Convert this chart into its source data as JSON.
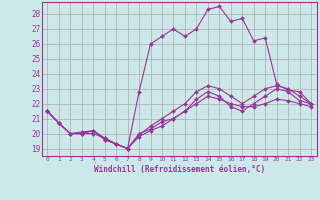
{
  "background_color": "#cce8e8",
  "grid_color": "#aaaaaa",
  "line_color": "#993399",
  "xlabel": "Windchill (Refroidissement éolien,°C)",
  "ylabel_ticks": [
    19,
    20,
    21,
    22,
    23,
    24,
    25,
    26,
    27,
    28
  ],
  "xlim": [
    -0.5,
    23.5
  ],
  "ylim": [
    18.5,
    28.8
  ],
  "series": [
    [
      21.5,
      20.7,
      20.0,
      20.0,
      20.2,
      19.6,
      19.3,
      19.0,
      20.0,
      20.3,
      20.8,
      21.0,
      21.5,
      22.0,
      22.5,
      22.3,
      22.0,
      21.8,
      21.8,
      22.0,
      22.3,
      22.2,
      22.0,
      21.8
    ],
    [
      21.5,
      20.7,
      20.0,
      20.0,
      20.2,
      19.6,
      19.3,
      19.0,
      22.8,
      26.0,
      26.5,
      27.0,
      26.5,
      27.0,
      28.3,
      28.5,
      27.5,
      27.7,
      26.2,
      26.4,
      23.3,
      22.9,
      22.8,
      22.0
    ],
    [
      21.5,
      20.7,
      20.0,
      20.0,
      20.0,
      19.7,
      19.3,
      19.0,
      19.8,
      20.2,
      20.5,
      21.0,
      21.5,
      22.3,
      22.8,
      22.5,
      21.8,
      21.5,
      22.0,
      22.5,
      23.0,
      22.8,
      22.2,
      22.0
    ],
    [
      21.5,
      20.7,
      20.0,
      20.1,
      20.2,
      19.7,
      19.3,
      19.0,
      19.9,
      20.5,
      21.0,
      21.5,
      22.0,
      22.8,
      23.2,
      23.0,
      22.5,
      22.0,
      22.5,
      23.0,
      23.2,
      23.0,
      22.5,
      22.0
    ]
  ]
}
